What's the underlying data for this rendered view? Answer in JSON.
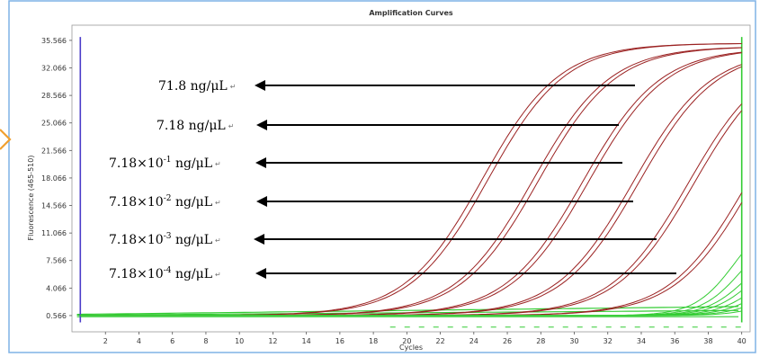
{
  "chart_data": {
    "type": "line",
    "title": "Amplification Curves",
    "xlabel": "Cycles",
    "ylabel": "Fluorescence (465-510)",
    "xlim": [
      0,
      40.5
    ],
    "ylim": [
      -1.5,
      37.5
    ],
    "x_ticks": [
      "2",
      "4",
      "6",
      "8",
      "10",
      "12",
      "14",
      "16",
      "18",
      "20",
      "22",
      "24",
      "26",
      "28",
      "30",
      "32",
      "34",
      "36",
      "38",
      "40"
    ],
    "y_ticks": [
      {
        "label": "0.566",
        "value": 0.566
      },
      {
        "label": "4.066",
        "value": 4.066
      },
      {
        "label": "7.566",
        "value": 7.566
      },
      {
        "label": "11.066",
        "value": 11.066
      },
      {
        "label": "14.566",
        "value": 14.566
      },
      {
        "label": "18.066",
        "value": 18.066
      },
      {
        "label": "21.566",
        "value": 21.566
      },
      {
        "label": "25.066",
        "value": 25.066
      },
      {
        "label": "28.566",
        "value": 28.566
      },
      {
        "label": "32.066",
        "value": 32.066
      },
      {
        "label": "35.566",
        "value": 35.566
      }
    ],
    "series": [
      {
        "color": "#9b2222",
        "plateau": 35.2,
        "midpoint": 24.5,
        "slope": 2.3,
        "duplicates": 2
      },
      {
        "color": "#9b2222",
        "plateau": 34.8,
        "midpoint": 27.5,
        "slope": 2.3,
        "duplicates": 2
      },
      {
        "color": "#9b2222",
        "plateau": 34.6,
        "midpoint": 30.5,
        "slope": 2.3,
        "duplicates": 2
      },
      {
        "color": "#9b2222",
        "plateau": 34.4,
        "midpoint": 33.5,
        "slope": 2.3,
        "duplicates": 2
      },
      {
        "color": "#9b2222",
        "plateau": 34.2,
        "midpoint": 36.8,
        "slope": 2.3,
        "duplicates": 2
      },
      {
        "color": "#9b2222",
        "plateau": 34.0,
        "midpoint": 40.3,
        "slope": 2.3,
        "duplicates": 2
      },
      {
        "color": "#33cc33",
        "plateau": 14,
        "midpoint": 39.6,
        "slope": 1.2,
        "duplicates": 1
      },
      {
        "color": "#33cc33",
        "plateau": 12,
        "midpoint": 40.0,
        "slope": 1.2,
        "duplicates": 1
      },
      {
        "color": "#33cc33",
        "plateau": 10,
        "midpoint": 40.3,
        "slope": 1.2,
        "duplicates": 1
      },
      {
        "color": "#33cc33",
        "plateau": 9,
        "midpoint": 40.6,
        "slope": 1.2,
        "duplicates": 1
      },
      {
        "color": "#33cc33",
        "plateau": 8,
        "midpoint": 41.0,
        "slope": 1.2,
        "duplicates": 1
      },
      {
        "color": "#33cc33",
        "plateau": 7,
        "midpoint": 41.4,
        "slope": 1.2,
        "duplicates": 1
      },
      {
        "color": "#33cc33",
        "plateau": 6,
        "midpoint": 41.8,
        "slope": 1.2,
        "duplicates": 1
      },
      {
        "color": "#33cc33",
        "plateau": 5,
        "midpoint": 42.3,
        "slope": 1.2,
        "duplicates": 1
      }
    ],
    "baseline_value": 0.566,
    "vertical_markers": [
      {
        "x": 0.5,
        "color": "#4a3cc9"
      },
      {
        "x": 40.0,
        "color": "#33cc33"
      }
    ],
    "annotations": [
      {
        "text": "71.8 ng/μL",
        "sup": "",
        "suffix": ""
      },
      {
        "text": "7.18 ng/μL",
        "sup": "",
        "suffix": ""
      },
      {
        "text": "7.18×10",
        "sup": "-1",
        "suffix": " ng/μL"
      },
      {
        "text": "7.18×10",
        "sup": "-2",
        "suffix": " ng/μL"
      },
      {
        "text": "7.18×10",
        "sup": "-3",
        "suffix": " ng/μL"
      },
      {
        "text": "7.18×10",
        "sup": "-4",
        "suffix": " ng/μL"
      }
    ],
    "grid": false,
    "colors": {
      "frame": "#7fb2e6",
      "chevron": "#f0a030",
      "amplified": "#9b2222",
      "negative": "#33cc33"
    }
  }
}
